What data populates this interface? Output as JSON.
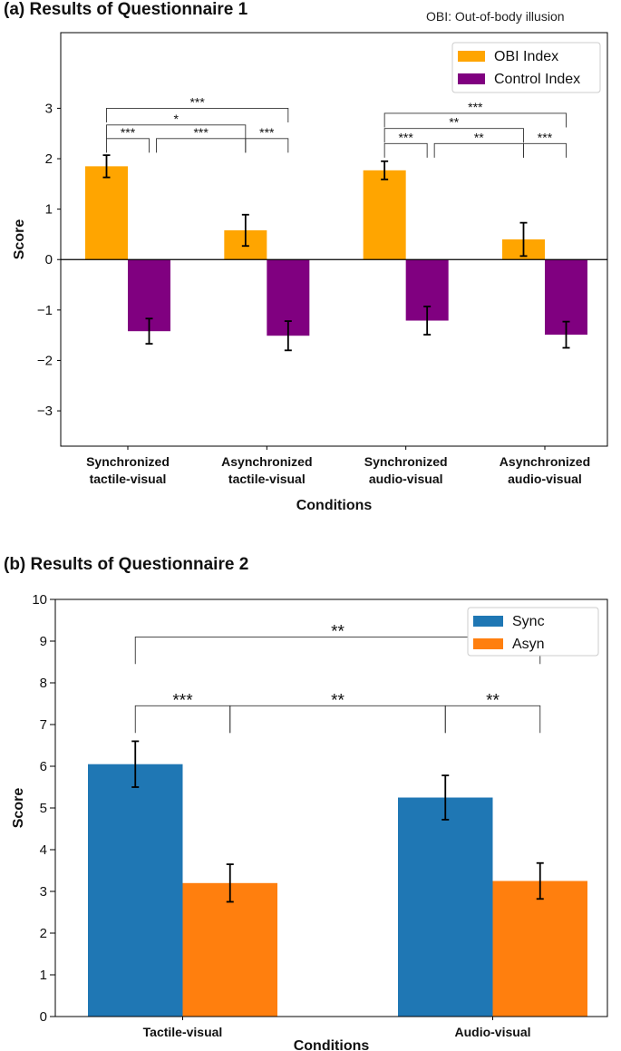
{
  "chart_data": [
    {
      "type": "bar",
      "title": "(a) Results of Questionnaire 1",
      "annotation": "OBI: Out-of-body illusion",
      "xlabel": "Conditions",
      "ylabel": "Score",
      "ylim": [
        -3.7,
        4.5
      ],
      "yticks": [
        -3,
        -2,
        -1,
        0,
        1,
        2,
        3
      ],
      "ytick_labels": [
        "−3",
        "−2",
        "−1",
        "0",
        "1",
        "2",
        "3"
      ],
      "categories": [
        [
          "Synchronized",
          "tactile-visual"
        ],
        [
          "Asynchronized",
          "tactile-visual"
        ],
        [
          "Synchronized",
          "audio-visual"
        ],
        [
          "Asynchronized",
          "audio-visual"
        ]
      ],
      "series": [
        {
          "name": "OBI Index",
          "color": "#FFA500",
          "values": [
            1.85,
            0.58,
            1.77,
            0.4
          ],
          "errors": [
            0.22,
            0.31,
            0.18,
            0.33
          ]
        },
        {
          "name": "Control Index",
          "color": "#800080",
          "values": [
            -1.42,
            -1.51,
            -1.21,
            -1.49
          ],
          "errors": [
            0.25,
            0.29,
            0.28,
            0.26
          ]
        }
      ],
      "legend_position": "top-right",
      "significance": [
        {
          "from": [
            0,
            0
          ],
          "to": [
            1,
            1
          ],
          "label": "***",
          "level": 3.0
        },
        {
          "from": [
            0,
            0
          ],
          "to": [
            1,
            0
          ],
          "label": "*",
          "level": 2.67
        },
        {
          "from": [
            0,
            0
          ],
          "to": [
            0,
            1
          ],
          "label": "***",
          "level": 2.4
        },
        {
          "from": [
            0,
            1
          ],
          "to": [
            1,
            0
          ],
          "label": "***",
          "level": 2.4
        },
        {
          "from": [
            1,
            0
          ],
          "to": [
            1,
            1
          ],
          "label": "***",
          "level": 2.4
        },
        {
          "from": [
            2,
            0
          ],
          "to": [
            3,
            1
          ],
          "label": "***",
          "level": 2.9
        },
        {
          "from": [
            2,
            0
          ],
          "to": [
            3,
            0
          ],
          "label": "**",
          "level": 2.6
        },
        {
          "from": [
            2,
            0
          ],
          "to": [
            2,
            1
          ],
          "label": "***",
          "level": 2.3
        },
        {
          "from": [
            2,
            1
          ],
          "to": [
            3,
            0
          ],
          "label": "**",
          "level": 2.3
        },
        {
          "from": [
            3,
            0
          ],
          "to": [
            3,
            1
          ],
          "label": "***",
          "level": 2.3
        }
      ]
    },
    {
      "type": "bar",
      "title": "(b) Results of Questionnaire 2",
      "xlabel": "Conditions",
      "ylabel": "Score",
      "ylim": [
        0,
        10
      ],
      "yticks": [
        0,
        1,
        2,
        3,
        4,
        5,
        6,
        7,
        8,
        9,
        10
      ],
      "ytick_labels": [
        "0",
        "1",
        "2",
        "3",
        "4",
        "5",
        "6",
        "7",
        "8",
        "9",
        "10"
      ],
      "categories": [
        [
          "Tactile-visual"
        ],
        [
          "Audio-visual"
        ]
      ],
      "series": [
        {
          "name": "Sync",
          "color": "#1F77B4",
          "values": [
            6.05,
            5.25
          ],
          "errors": [
            0.55,
            0.53
          ]
        },
        {
          "name": "Asyn",
          "color": "#FF7F0E",
          "values": [
            3.2,
            3.25
          ],
          "errors": [
            0.45,
            0.43
          ]
        }
      ],
      "legend_position": "top-right",
      "significance": [
        {
          "from": [
            0,
            0
          ],
          "to": [
            1,
            1
          ],
          "label": "**",
          "level": 9.1
        },
        {
          "from": [
            0,
            0
          ],
          "to": [
            0,
            1
          ],
          "label": "***",
          "level": 7.45
        },
        {
          "from": [
            0,
            1
          ],
          "to": [
            1,
            0
          ],
          "label": "**",
          "level": 7.45
        },
        {
          "from": [
            1,
            0
          ],
          "to": [
            1,
            1
          ],
          "label": "**",
          "level": 7.45
        }
      ]
    }
  ]
}
